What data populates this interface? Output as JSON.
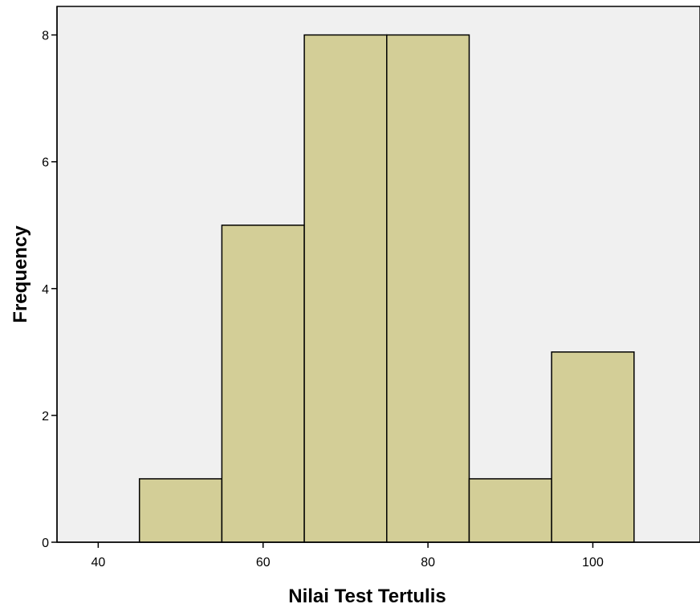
{
  "chart_data": {
    "type": "bar",
    "title": "",
    "xlabel": "Nilai Test Tertulis",
    "ylabel": "Frequency",
    "bins": [
      {
        "x0": 45,
        "x1": 55,
        "count": 1
      },
      {
        "x0": 55,
        "x1": 65,
        "count": 5
      },
      {
        "x0": 65,
        "x1": 75,
        "count": 8
      },
      {
        "x0": 75,
        "x1": 85,
        "count": 8
      },
      {
        "x0": 85,
        "x1": 95,
        "count": 1
      },
      {
        "x0": 95,
        "x1": 105,
        "count": 3
      }
    ],
    "xlim": [
      35,
      113
    ],
    "ylim": [
      0,
      8.45
    ],
    "x_ticks": [
      40,
      60,
      80,
      100
    ],
    "y_ticks": [
      0,
      2,
      4,
      6,
      8
    ],
    "grid": false,
    "colors": {
      "bar_fill": "#d3ce97",
      "bar_stroke": "#000000",
      "plot_background": "#f0f0f0",
      "axis": "#000000"
    }
  }
}
